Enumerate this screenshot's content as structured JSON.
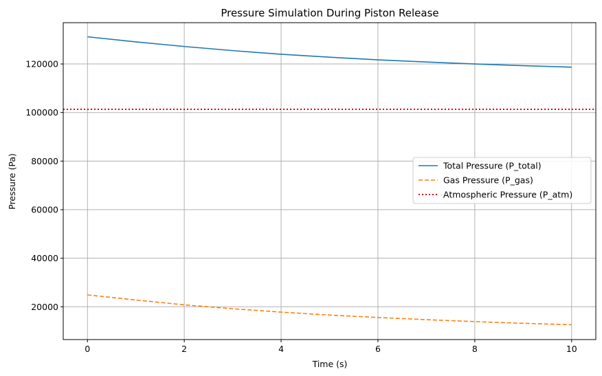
{
  "chart_data": {
    "type": "line",
    "title": "Pressure Simulation During Piston Release",
    "xlabel": "Time (s)",
    "ylabel": "Pressure (Pa)",
    "xlim": [
      -0.5,
      10.5
    ],
    "ylim": [
      6500,
      137000
    ],
    "xticks": [
      0,
      2,
      4,
      6,
      8,
      10
    ],
    "yticks": [
      20000,
      40000,
      60000,
      80000,
      100000,
      120000
    ],
    "grid": true,
    "legend_position": "center-right",
    "x": [
      0,
      1,
      2,
      3,
      4,
      5,
      6,
      7,
      8,
      9,
      10
    ],
    "series": [
      {
        "name": "Total Pressure (P_total)",
        "style": "solid",
        "color": "#1f77b4",
        "values": [
          131200,
          129100,
          127200,
          125500,
          124000,
          122800,
          121700,
          120800,
          120000,
          119300,
          118700
        ]
      },
      {
        "name": "Gas Pressure (P_gas)",
        "style": "dashed",
        "color": "#ff7f0e",
        "values": [
          24900,
          22800,
          20800,
          19200,
          17800,
          16600,
          15600,
          14700,
          13900,
          13200,
          12600
        ]
      },
      {
        "name": "Atmospheric Pressure (P_atm)",
        "style": "dotted",
        "color": "#e00000",
        "values": [
          101325,
          101325,
          101325,
          101325,
          101325,
          101325,
          101325,
          101325,
          101325,
          101325,
          101325
        ]
      }
    ]
  }
}
